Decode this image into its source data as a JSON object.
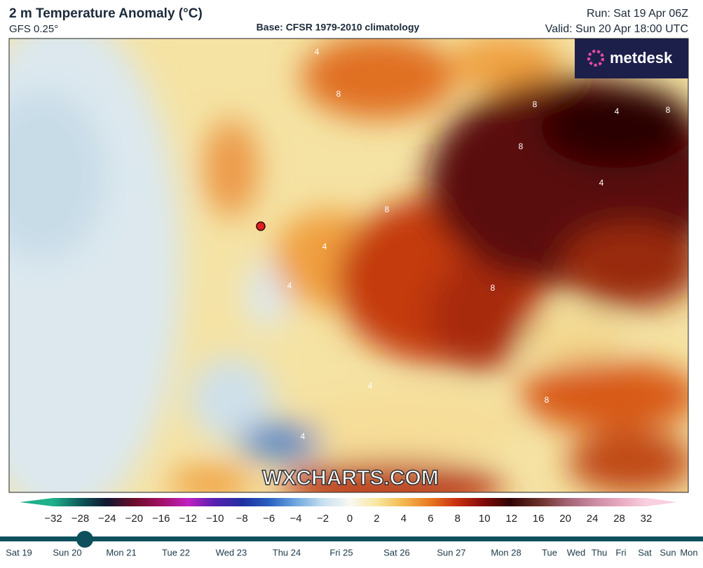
{
  "header": {
    "title": "2 m Temperature Anomaly (°C)",
    "model": "GFS 0.25°",
    "base": "Base: CFSR 1979-2010 climatology",
    "run": "Run: Sat 19 Apr 06Z",
    "valid": "Valid: Sun 20 Apr 18:00 UTC"
  },
  "logo": "metdesk",
  "watermark": "WXCHARTS.COM",
  "contour_labels": [
    "4",
    "8",
    "8",
    "4",
    "8",
    "8",
    "4",
    "8",
    "4",
    "8",
    "4",
    "4",
    "8",
    "4"
  ],
  "colorbar": {
    "labels": [
      "−32",
      "−28",
      "−24",
      "−20",
      "−16",
      "−12",
      "−10",
      "−8",
      "−6",
      "−4",
      "−2",
      "0",
      "2",
      "4",
      "6",
      "8",
      "10",
      "12",
      "16",
      "20",
      "24",
      "28",
      "32"
    ]
  },
  "timeline": {
    "days": [
      "Sat 19",
      "Sun 20",
      "Mon 21",
      "Tue 22",
      "Wed 23",
      "Thu 24",
      "Fri 25",
      "Sat 26",
      "Sun 27",
      "Mon 28",
      "Tue",
      "Wed",
      "Thu",
      "Fri",
      "Sat",
      "Sun",
      "Mon"
    ]
  }
}
